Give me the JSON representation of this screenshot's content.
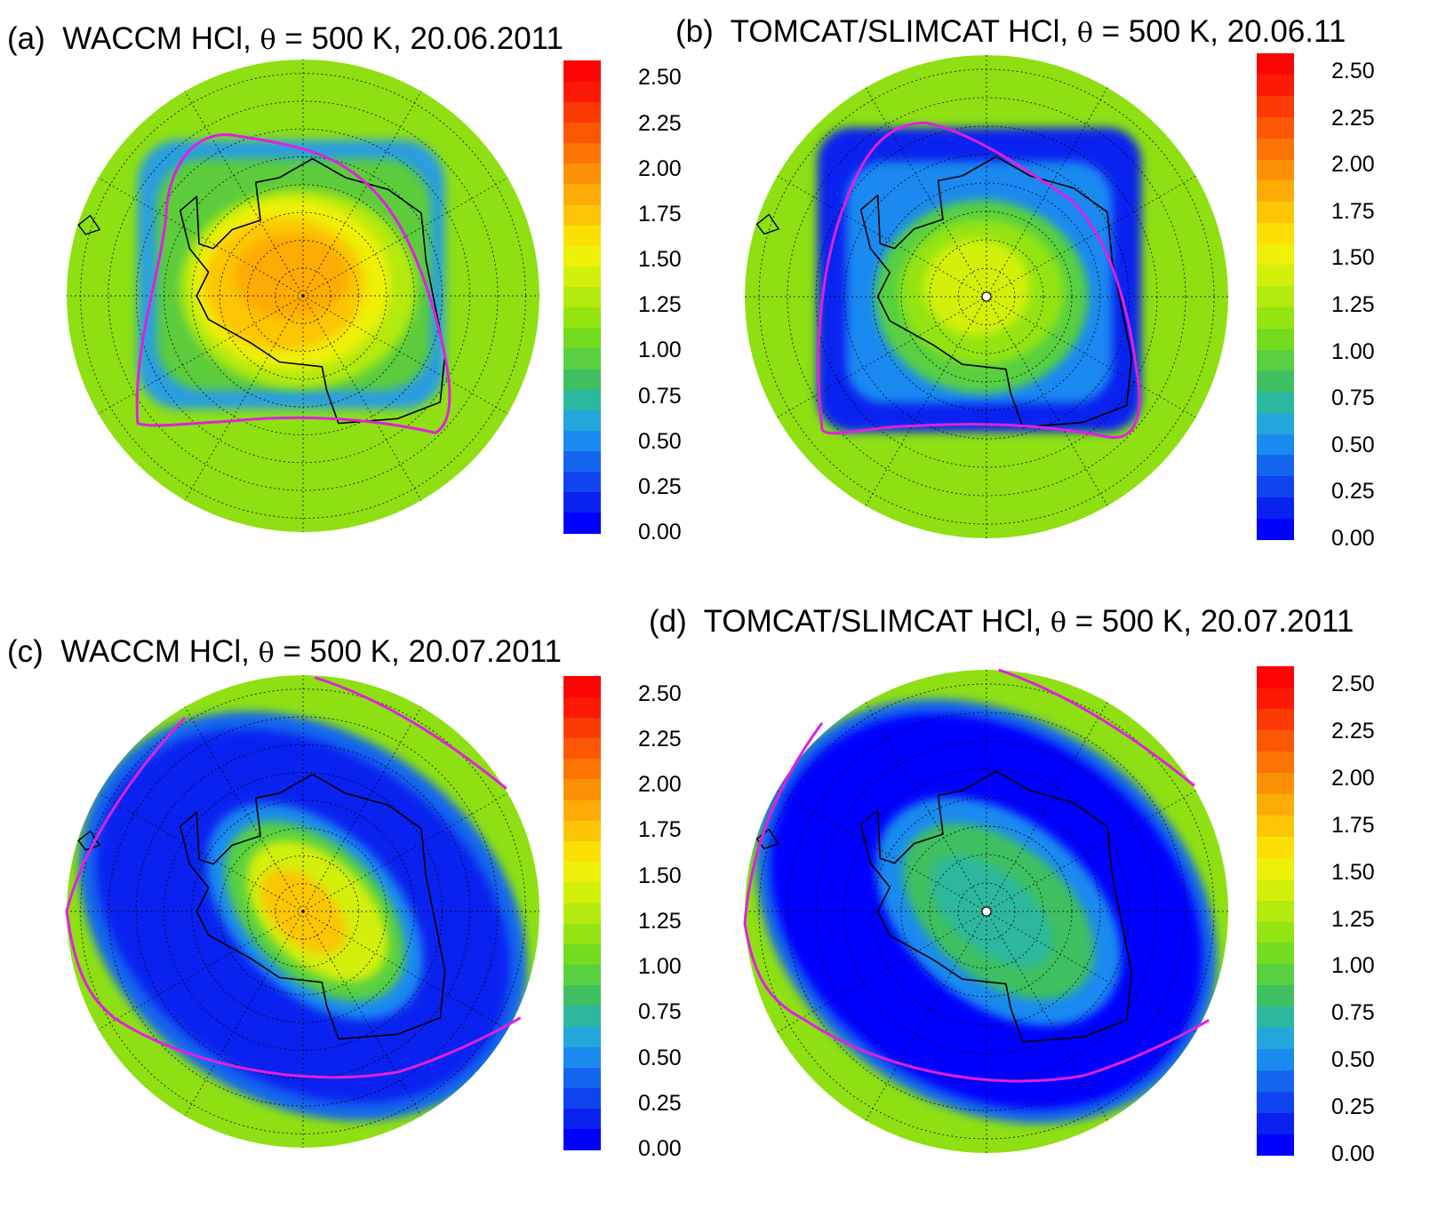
{
  "panels": [
    {
      "id": "a",
      "label": "(a)",
      "title_pre": "WACCM HCl,",
      "theta_symbol": "θ",
      "title_post": "= 500 K, 20.06.2011",
      "vortex": "a"
    },
    {
      "id": "b",
      "label": "(b)",
      "title_pre": "TOMCAT/SLIMCAT HCl,",
      "theta_symbol": "θ",
      "title_post": "= 500 K, 20.06.11",
      "vortex": "b"
    },
    {
      "id": "c",
      "label": "(c)",
      "title_pre": "WACCM HCl,",
      "theta_symbol": "θ",
      "title_post": "= 500 K, 20.07.2011",
      "vortex": "c"
    },
    {
      "id": "d",
      "label": "(d)",
      "title_pre": "TOMCAT/SLIMCAT HCl,",
      "theta_symbol": "θ",
      "title_post": "= 500 K, 20.07.2011",
      "vortex": "d"
    }
  ],
  "colorbar": {
    "ticks": [
      "0.00",
      "0.25",
      "0.50",
      "0.75",
      "1.00",
      "1.25",
      "1.50",
      "1.75",
      "2.00",
      "2.25",
      "2.50"
    ],
    "min": 0,
    "max": 2.6,
    "colors": [
      "#0000ff",
      "#0a22f0",
      "#1044f0",
      "#1466ee",
      "#1a8af0",
      "#22a6dc",
      "#2cb89e",
      "#3ec060",
      "#58d040",
      "#74dc1e",
      "#94e412",
      "#b4ea0e",
      "#d2f00a",
      "#eef008",
      "#fce004",
      "#fcc604",
      "#fcac04",
      "#fc9004",
      "#fc7404",
      "#fc5804",
      "#fc3a04",
      "#fc1a04",
      "#fc0404"
    ]
  },
  "colors": {
    "background_field": "#8ee012",
    "vortex_edge": "#e020e0",
    "coastline": "#000000",
    "grid": "#000000"
  }
}
